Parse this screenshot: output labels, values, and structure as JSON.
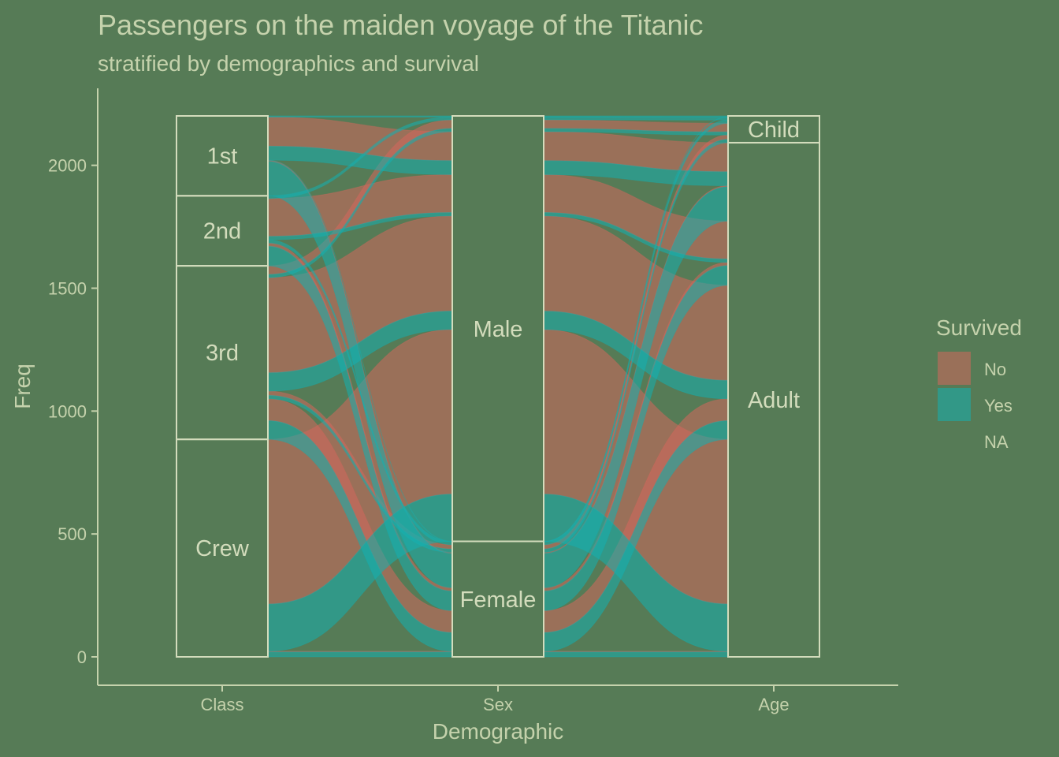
{
  "colors": {
    "background": "#567b56",
    "text": "#c5d2ac",
    "stratum_line": "#d3dcbc",
    "No": "#d4675d",
    "Yes": "#15b0b0",
    "NA": "#9a9a9a"
  },
  "chart_data": {
    "type": "alluvial",
    "title": "Passengers on the maiden voyage of the Titanic",
    "subtitle": "stratified by demographics and survival",
    "xlabel": "Demographic",
    "ylabel": "Freq",
    "ylim": [
      0,
      2201
    ],
    "yticks": [
      0,
      500,
      1000,
      1500,
      2000
    ],
    "axes": [
      "Class",
      "Sex",
      "Age"
    ],
    "strata": {
      "Class": [
        "1st",
        "2nd",
        "3rd",
        "Crew"
      ],
      "Sex": [
        "Male",
        "Female"
      ],
      "Age": [
        "Child",
        "Adult"
      ]
    },
    "legend": {
      "title": "Survived",
      "entries": [
        "No",
        "Yes",
        "NA"
      ],
      "placement": "right"
    },
    "flows": [
      {
        "Class": "1st",
        "Sex": "Male",
        "Age": "Child",
        "Survived": "No",
        "Freq": 0
      },
      {
        "Class": "2nd",
        "Sex": "Male",
        "Age": "Child",
        "Survived": "No",
        "Freq": 0
      },
      {
        "Class": "3rd",
        "Sex": "Male",
        "Age": "Child",
        "Survived": "No",
        "Freq": 35
      },
      {
        "Class": "Crew",
        "Sex": "Male",
        "Age": "Child",
        "Survived": "No",
        "Freq": 0
      },
      {
        "Class": "1st",
        "Sex": "Female",
        "Age": "Child",
        "Survived": "No",
        "Freq": 0
      },
      {
        "Class": "2nd",
        "Sex": "Female",
        "Age": "Child",
        "Survived": "No",
        "Freq": 0
      },
      {
        "Class": "3rd",
        "Sex": "Female",
        "Age": "Child",
        "Survived": "No",
        "Freq": 17
      },
      {
        "Class": "Crew",
        "Sex": "Female",
        "Age": "Child",
        "Survived": "No",
        "Freq": 0
      },
      {
        "Class": "1st",
        "Sex": "Male",
        "Age": "Adult",
        "Survived": "No",
        "Freq": 118
      },
      {
        "Class": "2nd",
        "Sex": "Male",
        "Age": "Adult",
        "Survived": "No",
        "Freq": 154
      },
      {
        "Class": "3rd",
        "Sex": "Male",
        "Age": "Adult",
        "Survived": "No",
        "Freq": 387
      },
      {
        "Class": "Crew",
        "Sex": "Male",
        "Age": "Adult",
        "Survived": "No",
        "Freq": 670
      },
      {
        "Class": "1st",
        "Sex": "Female",
        "Age": "Adult",
        "Survived": "No",
        "Freq": 4
      },
      {
        "Class": "2nd",
        "Sex": "Female",
        "Age": "Adult",
        "Survived": "No",
        "Freq": 13
      },
      {
        "Class": "3rd",
        "Sex": "Female",
        "Age": "Adult",
        "Survived": "No",
        "Freq": 89
      },
      {
        "Class": "Crew",
        "Sex": "Female",
        "Age": "Adult",
        "Survived": "No",
        "Freq": 3
      },
      {
        "Class": "1st",
        "Sex": "Male",
        "Age": "Child",
        "Survived": "Yes",
        "Freq": 5
      },
      {
        "Class": "2nd",
        "Sex": "Male",
        "Age": "Child",
        "Survived": "Yes",
        "Freq": 11
      },
      {
        "Class": "3rd",
        "Sex": "Male",
        "Age": "Child",
        "Survived": "Yes",
        "Freq": 13
      },
      {
        "Class": "Crew",
        "Sex": "Male",
        "Age": "Child",
        "Survived": "Yes",
        "Freq": 0
      },
      {
        "Class": "1st",
        "Sex": "Female",
        "Age": "Child",
        "Survived": "Yes",
        "Freq": 1
      },
      {
        "Class": "2nd",
        "Sex": "Female",
        "Age": "Child",
        "Survived": "Yes",
        "Freq": 13
      },
      {
        "Class": "3rd",
        "Sex": "Female",
        "Age": "Child",
        "Survived": "Yes",
        "Freq": 14
      },
      {
        "Class": "Crew",
        "Sex": "Female",
        "Age": "Child",
        "Survived": "Yes",
        "Freq": 0
      },
      {
        "Class": "1st",
        "Sex": "Male",
        "Age": "Adult",
        "Survived": "Yes",
        "Freq": 57
      },
      {
        "Class": "2nd",
        "Sex": "Male",
        "Age": "Adult",
        "Survived": "Yes",
        "Freq": 14
      },
      {
        "Class": "3rd",
        "Sex": "Male",
        "Age": "Adult",
        "Survived": "Yes",
        "Freq": 75
      },
      {
        "Class": "Crew",
        "Sex": "Male",
        "Age": "Adult",
        "Survived": "Yes",
        "Freq": 192
      },
      {
        "Class": "1st",
        "Sex": "Female",
        "Age": "Adult",
        "Survived": "Yes",
        "Freq": 140
      },
      {
        "Class": "2nd",
        "Sex": "Female",
        "Age": "Adult",
        "Survived": "Yes",
        "Freq": 80
      },
      {
        "Class": "3rd",
        "Sex": "Female",
        "Age": "Adult",
        "Survived": "Yes",
        "Freq": 76
      },
      {
        "Class": "Crew",
        "Sex": "Female",
        "Age": "Adult",
        "Survived": "Yes",
        "Freq": 20
      }
    ]
  }
}
